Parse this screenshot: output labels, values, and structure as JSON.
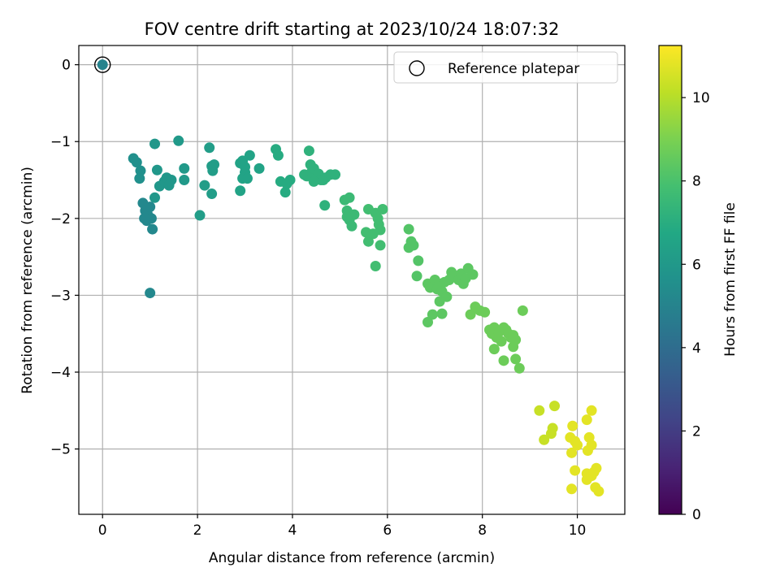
{
  "chart_data": {
    "type": "scatter",
    "title": "FOV centre drift starting at 2023/10/24 18:07:32",
    "xlabel": "Angular distance from reference (arcmin)",
    "ylabel": "Rotation from reference (arcmin)",
    "xlim": [
      -0.5,
      11.0
    ],
    "ylim": [
      -5.85,
      0.25
    ],
    "xticks": [
      0,
      2,
      4,
      6,
      8,
      10
    ],
    "yticks": [
      0,
      -1,
      -2,
      -3,
      -4,
      -5
    ],
    "grid": true,
    "legend": {
      "placement": "top-right",
      "entries": [
        "Reference platepar"
      ]
    },
    "reference_point": {
      "x": 0.0,
      "y": 0.0,
      "c": 5.0
    },
    "colorbar": {
      "label": "Hours from first FF file",
      "range": [
        0,
        11.25
      ],
      "ticks": [
        0,
        2,
        4,
        6,
        8,
        10
      ],
      "colormap": "viridis"
    },
    "points": [
      {
        "x": 0.65,
        "y": -1.22,
        "c": 5.6
      },
      {
        "x": 0.72,
        "y": -1.27,
        "c": 5.6
      },
      {
        "x": 0.8,
        "y": -1.38,
        "c": 5.6
      },
      {
        "x": 0.78,
        "y": -1.48,
        "c": 5.6
      },
      {
        "x": 1.1,
        "y": -1.03,
        "c": 5.9
      },
      {
        "x": 1.15,
        "y": -1.37,
        "c": 5.9
      },
      {
        "x": 1.2,
        "y": -1.58,
        "c": 5.9
      },
      {
        "x": 1.3,
        "y": -1.52,
        "c": 5.9
      },
      {
        "x": 1.35,
        "y": -1.47,
        "c": 5.9
      },
      {
        "x": 1.45,
        "y": -1.5,
        "c": 5.9
      },
      {
        "x": 1.4,
        "y": -1.57,
        "c": 5.9
      },
      {
        "x": 1.1,
        "y": -1.73,
        "c": 5.9
      },
      {
        "x": 1.6,
        "y": -0.99,
        "c": 6.0
      },
      {
        "x": 1.72,
        "y": -1.35,
        "c": 6.0
      },
      {
        "x": 1.72,
        "y": -1.5,
        "c": 6.0
      },
      {
        "x": 0.85,
        "y": -1.8,
        "c": 5.2
      },
      {
        "x": 0.9,
        "y": -1.9,
        "c": 5.2
      },
      {
        "x": 0.93,
        "y": -2.03,
        "c": 5.2
      },
      {
        "x": 0.95,
        "y": -1.95,
        "c": 5.2
      },
      {
        "x": 1.0,
        "y": -1.85,
        "c": 5.2
      },
      {
        "x": 1.03,
        "y": -2.0,
        "c": 5.2
      },
      {
        "x": 1.05,
        "y": -2.14,
        "c": 5.2
      },
      {
        "x": 0.88,
        "y": -2.0,
        "c": 5.2
      },
      {
        "x": 1.0,
        "y": -2.97,
        "c": 5.2
      },
      {
        "x": 2.05,
        "y": -1.96,
        "c": 6.2
      },
      {
        "x": 2.15,
        "y": -1.57,
        "c": 6.2
      },
      {
        "x": 2.25,
        "y": -1.08,
        "c": 6.2
      },
      {
        "x": 2.3,
        "y": -1.32,
        "c": 6.2
      },
      {
        "x": 2.32,
        "y": -1.38,
        "c": 6.2
      },
      {
        "x": 2.35,
        "y": -1.3,
        "c": 6.2
      },
      {
        "x": 2.3,
        "y": -1.68,
        "c": 6.2
      },
      {
        "x": 2.9,
        "y": -1.28,
        "c": 6.5
      },
      {
        "x": 2.95,
        "y": -1.25,
        "c": 6.5
      },
      {
        "x": 2.9,
        "y": -1.64,
        "c": 6.5
      },
      {
        "x": 2.95,
        "y": -1.48,
        "c": 6.5
      },
      {
        "x": 3.0,
        "y": -1.4,
        "c": 6.5
      },
      {
        "x": 3.05,
        "y": -1.48,
        "c": 6.5
      },
      {
        "x": 3.1,
        "y": -1.18,
        "c": 6.5
      },
      {
        "x": 3.3,
        "y": -1.35,
        "c": 6.5
      },
      {
        "x": 3.0,
        "y": -1.33,
        "c": 6.5
      },
      {
        "x": 3.65,
        "y": -1.1,
        "c": 6.9
      },
      {
        "x": 3.7,
        "y": -1.18,
        "c": 6.9
      },
      {
        "x": 3.75,
        "y": -1.52,
        "c": 6.9
      },
      {
        "x": 3.85,
        "y": -1.66,
        "c": 6.9
      },
      {
        "x": 3.95,
        "y": -1.5,
        "c": 6.9
      },
      {
        "x": 3.88,
        "y": -1.55,
        "c": 6.9
      },
      {
        "x": 4.25,
        "y": -1.43,
        "c": 7.2
      },
      {
        "x": 4.3,
        "y": -1.45,
        "c": 7.2
      },
      {
        "x": 4.35,
        "y": -1.12,
        "c": 7.2
      },
      {
        "x": 4.38,
        "y": -1.3,
        "c": 7.2
      },
      {
        "x": 4.4,
        "y": -1.4,
        "c": 7.2
      },
      {
        "x": 4.45,
        "y": -1.35,
        "c": 7.2
      },
      {
        "x": 4.5,
        "y": -1.48,
        "c": 7.2
      },
      {
        "x": 4.55,
        "y": -1.42,
        "c": 7.2
      },
      {
        "x": 4.6,
        "y": -1.5,
        "c": 7.2
      },
      {
        "x": 4.65,
        "y": -1.5,
        "c": 7.2
      },
      {
        "x": 4.7,
        "y": -1.47,
        "c": 7.2
      },
      {
        "x": 4.8,
        "y": -1.43,
        "c": 7.2
      },
      {
        "x": 4.68,
        "y": -1.83,
        "c": 7.2
      },
      {
        "x": 4.9,
        "y": -1.43,
        "c": 7.2
      },
      {
        "x": 4.45,
        "y": -1.52,
        "c": 7.2
      },
      {
        "x": 5.1,
        "y": -1.76,
        "c": 7.6
      },
      {
        "x": 5.2,
        "y": -1.73,
        "c": 7.6
      },
      {
        "x": 5.15,
        "y": -1.9,
        "c": 7.6
      },
      {
        "x": 5.2,
        "y": -2.02,
        "c": 7.6
      },
      {
        "x": 5.25,
        "y": -2.1,
        "c": 7.6
      },
      {
        "x": 5.3,
        "y": -1.95,
        "c": 7.6
      },
      {
        "x": 5.15,
        "y": -1.98,
        "c": 7.6
      },
      {
        "x": 5.55,
        "y": -2.18,
        "c": 7.8
      },
      {
        "x": 5.6,
        "y": -2.3,
        "c": 7.8
      },
      {
        "x": 5.6,
        "y": -1.88,
        "c": 7.8
      },
      {
        "x": 5.7,
        "y": -2.2,
        "c": 7.8
      },
      {
        "x": 5.75,
        "y": -1.93,
        "c": 7.8
      },
      {
        "x": 5.8,
        "y": -2.0,
        "c": 7.8
      },
      {
        "x": 5.82,
        "y": -2.08,
        "c": 7.8
      },
      {
        "x": 5.85,
        "y": -2.15,
        "c": 7.8
      },
      {
        "x": 5.9,
        "y": -1.88,
        "c": 7.8
      },
      {
        "x": 5.75,
        "y": -2.62,
        "c": 7.8
      },
      {
        "x": 5.85,
        "y": -2.35,
        "c": 7.8
      },
      {
        "x": 6.45,
        "y": -2.14,
        "c": 8.2
      },
      {
        "x": 6.5,
        "y": -2.3,
        "c": 8.2
      },
      {
        "x": 6.45,
        "y": -2.38,
        "c": 8.2
      },
      {
        "x": 6.55,
        "y": -2.35,
        "c": 8.2
      },
      {
        "x": 6.65,
        "y": -2.55,
        "c": 8.2
      },
      {
        "x": 6.62,
        "y": -2.75,
        "c": 8.2
      },
      {
        "x": 6.85,
        "y": -2.85,
        "c": 8.4
      },
      {
        "x": 6.9,
        "y": -2.9,
        "c": 8.4
      },
      {
        "x": 7.0,
        "y": -2.8,
        "c": 8.4
      },
      {
        "x": 7.05,
        "y": -2.92,
        "c": 8.4
      },
      {
        "x": 7.1,
        "y": -2.85,
        "c": 8.4
      },
      {
        "x": 7.15,
        "y": -2.95,
        "c": 8.4
      },
      {
        "x": 7.2,
        "y": -2.83,
        "c": 8.4
      },
      {
        "x": 7.25,
        "y": -3.02,
        "c": 8.4
      },
      {
        "x": 7.3,
        "y": -2.8,
        "c": 8.4
      },
      {
        "x": 7.35,
        "y": -2.7,
        "c": 8.4
      },
      {
        "x": 7.4,
        "y": -2.75,
        "c": 8.4
      },
      {
        "x": 7.5,
        "y": -2.8,
        "c": 8.4
      },
      {
        "x": 7.55,
        "y": -2.72,
        "c": 8.4
      },
      {
        "x": 7.6,
        "y": -2.85,
        "c": 8.4
      },
      {
        "x": 7.65,
        "y": -2.78,
        "c": 8.4
      },
      {
        "x": 7.7,
        "y": -2.65,
        "c": 8.4
      },
      {
        "x": 7.8,
        "y": -2.73,
        "c": 8.4
      },
      {
        "x": 7.1,
        "y": -3.08,
        "c": 8.4
      },
      {
        "x": 7.15,
        "y": -3.24,
        "c": 8.4
      },
      {
        "x": 6.95,
        "y": -3.25,
        "c": 8.4
      },
      {
        "x": 6.85,
        "y": -3.35,
        "c": 8.4
      },
      {
        "x": 7.75,
        "y": -3.25,
        "c": 8.7
      },
      {
        "x": 7.85,
        "y": -3.15,
        "c": 8.7
      },
      {
        "x": 7.95,
        "y": -3.2,
        "c": 8.7
      },
      {
        "x": 8.05,
        "y": -3.22,
        "c": 8.7
      },
      {
        "x": 8.15,
        "y": -3.45,
        "c": 8.7
      },
      {
        "x": 8.2,
        "y": -3.5,
        "c": 8.7
      },
      {
        "x": 8.25,
        "y": -3.42,
        "c": 8.7
      },
      {
        "x": 8.3,
        "y": -3.55,
        "c": 8.7
      },
      {
        "x": 8.35,
        "y": -3.48,
        "c": 8.7
      },
      {
        "x": 8.4,
        "y": -3.6,
        "c": 8.7
      },
      {
        "x": 8.45,
        "y": -3.42,
        "c": 8.7
      },
      {
        "x": 8.5,
        "y": -3.45,
        "c": 8.7
      },
      {
        "x": 8.55,
        "y": -3.5,
        "c": 8.7
      },
      {
        "x": 8.6,
        "y": -3.55,
        "c": 8.7
      },
      {
        "x": 8.65,
        "y": -3.52,
        "c": 8.7
      },
      {
        "x": 8.7,
        "y": -3.58,
        "c": 8.7
      },
      {
        "x": 8.25,
        "y": -3.7,
        "c": 8.7
      },
      {
        "x": 8.45,
        "y": -3.85,
        "c": 8.7
      },
      {
        "x": 8.65,
        "y": -3.67,
        "c": 8.7
      },
      {
        "x": 8.7,
        "y": -3.83,
        "c": 8.7
      },
      {
        "x": 8.78,
        "y": -3.95,
        "c": 8.7
      },
      {
        "x": 8.85,
        "y": -3.2,
        "c": 8.7
      },
      {
        "x": 9.2,
        "y": -4.5,
        "c": 10.3
      },
      {
        "x": 9.3,
        "y": -4.88,
        "c": 10.3
      },
      {
        "x": 9.45,
        "y": -4.8,
        "c": 10.3
      },
      {
        "x": 9.48,
        "y": -4.73,
        "c": 10.3
      },
      {
        "x": 9.52,
        "y": -4.44,
        "c": 10.3
      },
      {
        "x": 9.85,
        "y": -4.85,
        "c": 10.8
      },
      {
        "x": 9.9,
        "y": -4.7,
        "c": 10.8
      },
      {
        "x": 9.95,
        "y": -4.9,
        "c": 10.8
      },
      {
        "x": 9.88,
        "y": -5.05,
        "c": 10.8
      },
      {
        "x": 10.0,
        "y": -4.95,
        "c": 10.8
      },
      {
        "x": 9.95,
        "y": -5.28,
        "c": 10.8
      },
      {
        "x": 9.88,
        "y": -5.52,
        "c": 10.8
      },
      {
        "x": 10.2,
        "y": -4.62,
        "c": 10.8
      },
      {
        "x": 10.25,
        "y": -4.85,
        "c": 10.8
      },
      {
        "x": 10.3,
        "y": -4.5,
        "c": 10.8
      },
      {
        "x": 10.22,
        "y": -5.02,
        "c": 10.8
      },
      {
        "x": 10.3,
        "y": -4.95,
        "c": 10.8
      },
      {
        "x": 10.2,
        "y": -5.32,
        "c": 10.8
      },
      {
        "x": 10.2,
        "y": -5.4,
        "c": 10.8
      },
      {
        "x": 10.3,
        "y": -5.35,
        "c": 10.8
      },
      {
        "x": 10.35,
        "y": -5.3,
        "c": 10.8
      },
      {
        "x": 10.4,
        "y": -5.25,
        "c": 10.8
      },
      {
        "x": 10.38,
        "y": -5.5,
        "c": 10.8
      },
      {
        "x": 10.45,
        "y": -5.55,
        "c": 10.8
      }
    ]
  }
}
